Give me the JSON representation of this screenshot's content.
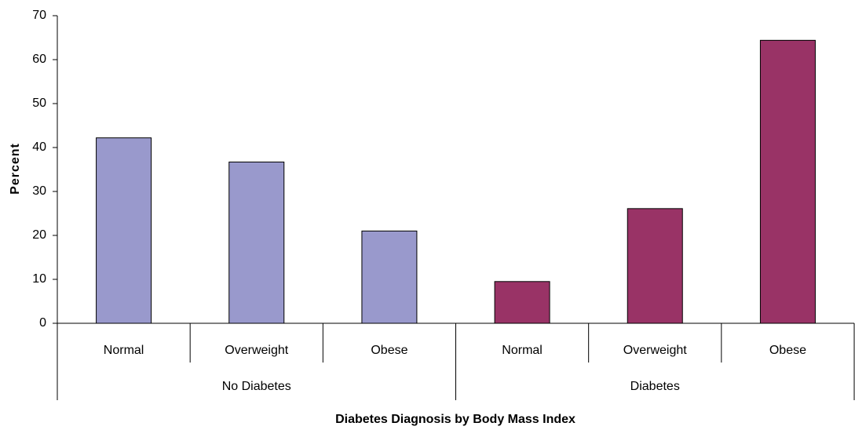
{
  "chart_data": {
    "type": "bar",
    "x_label": "Diabetes Diagnosis by Body Mass Index",
    "y_label": "Percent",
    "series": [
      {
        "name": "No Diabetes",
        "color": "#9999cc",
        "categories": [
          "Normal",
          "Overweight",
          "Obese"
        ],
        "values": [
          42.2,
          36.7,
          21.0
        ]
      },
      {
        "name": "Diabetes",
        "color": "#993366",
        "categories": [
          "Normal",
          "Overweight",
          "Obese"
        ],
        "values": [
          9.5,
          26.1,
          64.4
        ]
      }
    ],
    "ylim": [
      0,
      70
    ],
    "yticks": [
      0,
      10,
      20,
      30,
      40,
      50,
      60,
      70
    ]
  }
}
